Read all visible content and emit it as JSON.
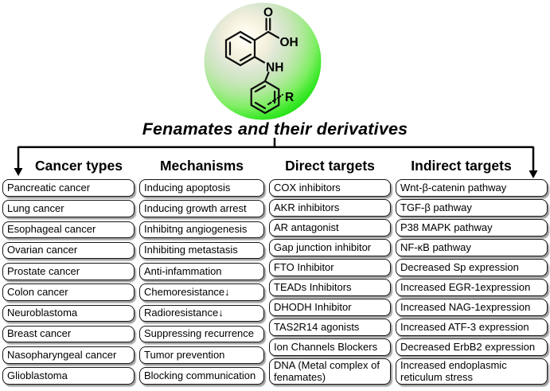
{
  "title": "Fenamates and their derivatives",
  "molecule": {
    "labels": {
      "carbonyl_o": "O",
      "hydroxyl": "OH",
      "amine": "NH",
      "substituent": "R"
    }
  },
  "colors": {
    "halo_green_edge": "#1fe012",
    "halo_green_mid": "#8aec72",
    "halo_cream_center": "#fdf9ea",
    "box_border": "#161616",
    "box_shadow": "#9e9e9e",
    "line": "#000000"
  },
  "columns": [
    {
      "title": "Cancer types",
      "items": [
        "Pancreatic cancer",
        "Lung cancer",
        "Esophageal cancer",
        "Ovarian cancer",
        "Prostate cancer",
        "Colon cancer",
        "Neuroblastoma",
        "Breast cancer",
        "Nasopharyngeal cancer",
        "Glioblastoma"
      ]
    },
    {
      "title": "Mechanisms",
      "items": [
        "Inducing apoptosis",
        "Inducing growth arrest",
        "Inhibitng angiogenesis",
        "Inhibiting metastasis",
        "Anti-infammation",
        "Chemoresistance↓",
        "Radioresistance↓",
        "Suppressing recurrence",
        "Tumor prevention",
        "Blocking communication"
      ]
    },
    {
      "title": "Direct targets",
      "items": [
        "COX inhibitors",
        "AKR inhibitors",
        "AR antagonist",
        "Gap junction inhibitor",
        "FTO Inhibitor",
        "TEADs Inhibitors",
        "DHODH Inhibitor",
        "TAS2R14 agonists",
        "Ion Channels Blockers",
        "DNA (Metal complex of fenamates)"
      ]
    },
    {
      "title": "Indirect targets",
      "items": [
        "Wnt-β-catenin pathway",
        "TGF-β pathway",
        "P38 MAPK pathway",
        "NF-κB pathway",
        "Decreased Sp expression",
        "Increased EGR-1expression",
        "Increased NAG-1expression",
        "Increased ATF-3 expression",
        "Decreased ErbB2 expression",
        "Increased endoplasmic reticulum stress"
      ]
    }
  ]
}
